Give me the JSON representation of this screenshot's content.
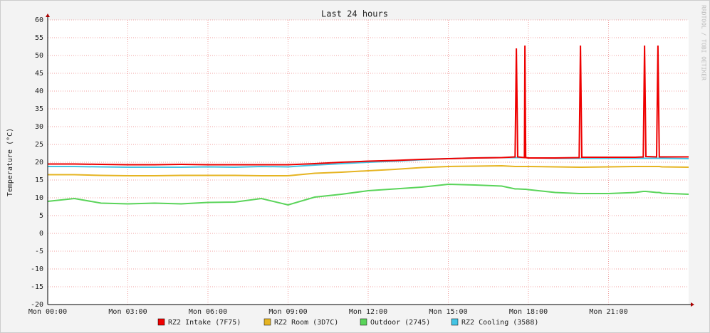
{
  "chart_data": {
    "type": "line",
    "title": "Last 24 hours",
    "y_label": "Temperature (°C)",
    "watermark": "RRDTOOL / TOBI OETIKER",
    "x": [
      0,
      1,
      2,
      3,
      4,
      5,
      6,
      7,
      8,
      9,
      10,
      11,
      12,
      13,
      14,
      15,
      16,
      17,
      17.5,
      17.55,
      17.6,
      17.85,
      17.87,
      17.9,
      18,
      19,
      19.9,
      19.95,
      20,
      21,
      22,
      22.3,
      22.35,
      22.4,
      22.8,
      22.85,
      22.9,
      23,
      24
    ],
    "xlim": [
      0,
      24
    ],
    "xticks": [
      {
        "value": 0,
        "label": "Mon 00:00"
      },
      {
        "value": 3,
        "label": "Mon 03:00"
      },
      {
        "value": 6,
        "label": "Mon 06:00"
      },
      {
        "value": 9,
        "label": "Mon 09:00"
      },
      {
        "value": 12,
        "label": "Mon 12:00"
      },
      {
        "value": 15,
        "label": "Mon 15:00"
      },
      {
        "value": 18,
        "label": "Mon 18:00"
      },
      {
        "value": 21,
        "label": "Mon 21:00"
      }
    ],
    "ylim": [
      -20,
      60
    ],
    "yticks": [
      -20,
      -15,
      -10,
      -5,
      0,
      5,
      10,
      15,
      20,
      25,
      30,
      35,
      40,
      45,
      50,
      55,
      60
    ],
    "grid": true,
    "legend": "bottom",
    "series": [
      {
        "name": "RZ2 Intake (7F75)",
        "color": "#ee0000",
        "values": [
          19.5,
          19.5,
          19.4,
          19.3,
          19.3,
          19.4,
          19.3,
          19.3,
          19.3,
          19.3,
          19.6,
          20,
          20.3,
          20.5,
          20.8,
          21,
          21.2,
          21.3,
          21.5,
          52,
          21.5,
          21.3,
          52.8,
          21.3,
          21.2,
          21.2,
          21.3,
          52.8,
          21.4,
          21.4,
          21.4,
          21.5,
          52.8,
          21.6,
          21.5,
          52.8,
          21.5,
          21.5,
          21.5
        ]
      },
      {
        "name": "RZ2 Room (3D7C)",
        "color": "#e6b422",
        "values": [
          16.5,
          16.5,
          16.3,
          16.2,
          16.2,
          16.3,
          16.3,
          16.3,
          16.2,
          16.2,
          16.9,
          17.2,
          17.6,
          18,
          18.5,
          18.8,
          18.9,
          19,
          18.8,
          18.8,
          18.8,
          18.8,
          18.8,
          18.8,
          18.8,
          18.7,
          18.6,
          18.6,
          18.6,
          18.7,
          18.8,
          18.8,
          18.8,
          18.8,
          18.8,
          18.8,
          18.8,
          18.7,
          18.6
        ]
      },
      {
        "name": "Outdoor (2745)",
        "color": "#5ad45a",
        "values": [
          9,
          9.8,
          8.5,
          8.3,
          8.5,
          8.3,
          8.7,
          8.8,
          9.8,
          8,
          10.2,
          11,
          12,
          12.5,
          13,
          13.8,
          13.6,
          13.3,
          12.5,
          12.5,
          12.5,
          12.4,
          12.4,
          12.4,
          12.3,
          11.5,
          11.2,
          11.2,
          11.2,
          11.2,
          11.5,
          11.8,
          11.8,
          11.8,
          11.5,
          11.5,
          11.5,
          11.3,
          11
        ]
      },
      {
        "name": "RZ2 Cooling (3588)",
        "color": "#44c4e4",
        "values": [
          18.8,
          18.8,
          18.7,
          18.6,
          18.6,
          18.6,
          18.7,
          18.6,
          18.8,
          18.7,
          19.2,
          19.6,
          20,
          20.3,
          20.7,
          21,
          21.2,
          21.3,
          21.3,
          21.3,
          21.3,
          21.3,
          21.3,
          21.3,
          21.2,
          21.1,
          21.1,
          21.1,
          21.1,
          21.1,
          21.1,
          21.1,
          21.1,
          21.1,
          21.1,
          21.1,
          21.1,
          21.1,
          21
        ]
      }
    ]
  }
}
